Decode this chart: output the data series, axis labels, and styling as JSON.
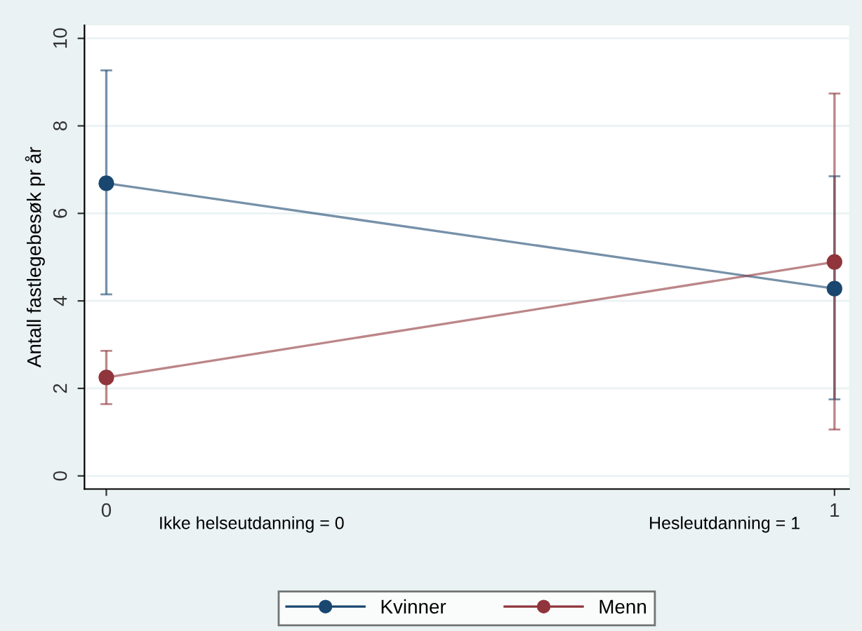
{
  "chart_data": {
    "type": "line",
    "ylabel": "Antall fastlegebesøk pr år",
    "x": [
      0,
      1
    ],
    "xlim": [
      -0.03,
      1.02
    ],
    "xticks": [
      0,
      1
    ],
    "ylim": [
      -0.3,
      10.3
    ],
    "yticks": [
      0,
      2,
      4,
      6,
      8,
      10
    ],
    "grid": "y",
    "marker": "circle",
    "legend": "bottom",
    "series": [
      {
        "name": "Kvinner",
        "color": "#1a476f",
        "values": [
          6.69,
          4.28
        ],
        "errors": [
          [
            4.15,
            9.27
          ],
          [
            1.75,
            6.85
          ]
        ]
      },
      {
        "name": "Menn",
        "color": "#90353b",
        "values": [
          2.25,
          4.89
        ],
        "errors": [
          [
            1.64,
            2.86
          ],
          [
            1.06,
            8.74
          ]
        ]
      }
    ],
    "annotations": [
      "Ikke helseutdanning = 0",
      "Hesleutdanning = 1"
    ]
  }
}
